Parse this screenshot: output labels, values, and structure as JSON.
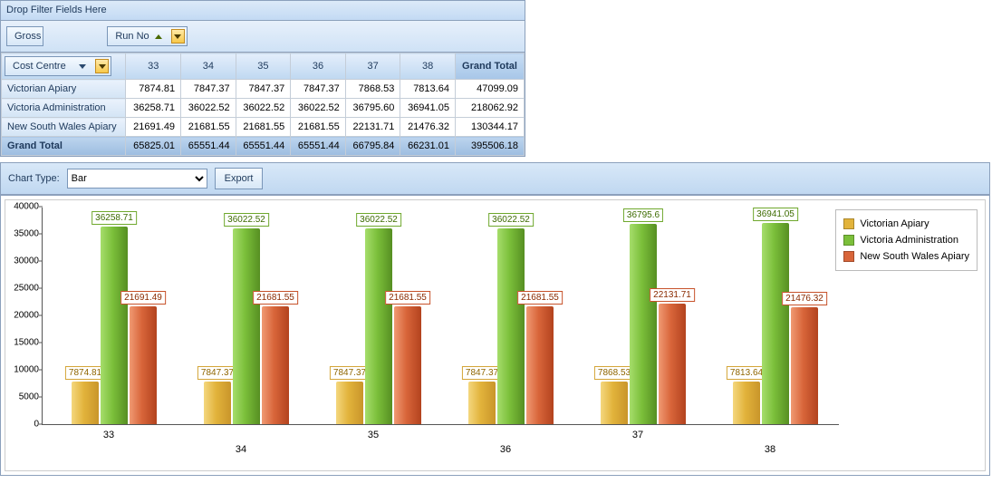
{
  "colors": {
    "series": [
      {
        "name": "Victorian Apiary",
        "base": "#e2b33b",
        "light": "#f4d77e",
        "dark": "#c9952a"
      },
      {
        "name": "Victoria Administration",
        "base": "#7bbf3a",
        "light": "#a6dd6c",
        "dark": "#568f22"
      },
      {
        "name": "New South Wales Apiary",
        "base": "#d8653a",
        "light": "#f09a73",
        "dark": "#b3431e"
      }
    ],
    "grid_border": "#8ba0bc",
    "header_bg_top": "#e4eefb",
    "header_bg_bot": "#bfd8f1"
  },
  "pivot": {
    "filter_placeholder": "Drop Filter Fields Here",
    "data_field_label": "Gross",
    "column_field_label": "Run No",
    "row_field_label": "Cost Centre",
    "grand_total_label": "Grand Total",
    "column_values": [
      "33",
      "34",
      "35",
      "36",
      "37",
      "38"
    ],
    "rows": [
      {
        "label": "Victorian Apiary",
        "values": [
          "7874.81",
          "7847.37",
          "7847.37",
          "7847.37",
          "7868.53",
          "7813.64"
        ],
        "total": "47099.09"
      },
      {
        "label": "Victoria Administration",
        "values": [
          "36258.71",
          "36022.52",
          "36022.52",
          "36022.52",
          "36795.60",
          "36941.05"
        ],
        "total": "218062.92"
      },
      {
        "label": "New South Wales Apiary",
        "values": [
          "21691.49",
          "21681.55",
          "21681.55",
          "21681.55",
          "22131.71",
          "21476.32"
        ],
        "total": "130344.17"
      }
    ],
    "grand_total_row": {
      "values": [
        "65825.01",
        "65551.44",
        "65551.44",
        "65551.44",
        "66795.84",
        "66231.01"
      ],
      "total": "395506.18"
    }
  },
  "chart_toolbar": {
    "label": "Chart Type:",
    "selected": "Bar",
    "export_label": "Export"
  },
  "chart": {
    "type": "bar",
    "ylim": [
      0,
      40000
    ],
    "ytick_step": 5000,
    "yticks": [
      "0",
      "5000",
      "10000",
      "15000",
      "20000",
      "25000",
      "30000",
      "35000",
      "40000"
    ],
    "categories": [
      "33",
      "34",
      "35",
      "36",
      "37",
      "38"
    ],
    "series": [
      {
        "name": "Victorian Apiary",
        "color_index": 0,
        "values": [
          7874.81,
          7847.37,
          7847.37,
          7847.37,
          7868.53,
          7813.64
        ],
        "labels": [
          "7874.81",
          "7847.37",
          "7847.37",
          "7847.37",
          "7868.53",
          "7813.64"
        ]
      },
      {
        "name": "Victoria Administration",
        "color_index": 1,
        "values": [
          36258.71,
          36022.52,
          36022.52,
          36022.52,
          36795.6,
          36941.05
        ],
        "labels": [
          "36258.71",
          "36022.52",
          "36022.52",
          "36022.52",
          "36795.6",
          "36941.05"
        ]
      },
      {
        "name": "New South Wales Apiary",
        "color_index": 2,
        "values": [
          21691.49,
          21681.55,
          21681.55,
          21681.55,
          22131.71,
          21476.32
        ],
        "labels": [
          "21691.49",
          "21681.55",
          "21681.55",
          "21681.55",
          "22131.71",
          "21476.32"
        ]
      }
    ]
  }
}
